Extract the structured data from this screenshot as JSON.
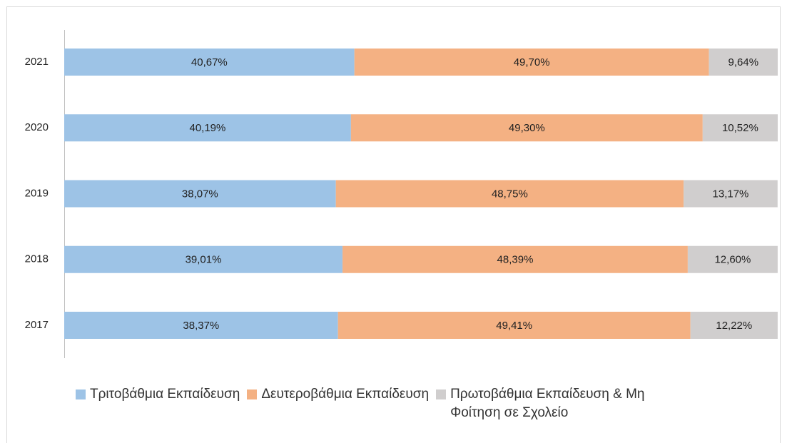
{
  "chart_data": {
    "type": "stacked-bar-horizontal",
    "categories": [
      "2021",
      "2020",
      "2019",
      "2018",
      "2017"
    ],
    "series": [
      {
        "name": "Τριτοβάθμια Εκπαίδευση",
        "color": "#9dc3e6",
        "values": [
          40.67,
          40.19,
          38.07,
          39.01,
          38.37
        ],
        "value_labels": [
          "40,67%",
          "40,19%",
          "38,07%",
          "39,01%",
          "38,37%"
        ]
      },
      {
        "name": "Δευτεροβάθμια Εκπαίδευση",
        "color": "#f4b183",
        "values": [
          49.7,
          49.3,
          48.75,
          48.39,
          49.41
        ],
        "value_labels": [
          "49,70%",
          "49,30%",
          "48,75%",
          "48,39%",
          "49,41%"
        ]
      },
      {
        "name": "Πρωτοβάθμια Εκπαίδευση & Μη Φοίτηση σε Σχολείο",
        "color": "#d0cece",
        "values": [
          9.64,
          10.52,
          13.17,
          12.6,
          12.22
        ],
        "value_labels": [
          "9,64%",
          "10,52%",
          "13,17%",
          "12,60%",
          "12,22%"
        ]
      }
    ],
    "legend": "bottom"
  }
}
